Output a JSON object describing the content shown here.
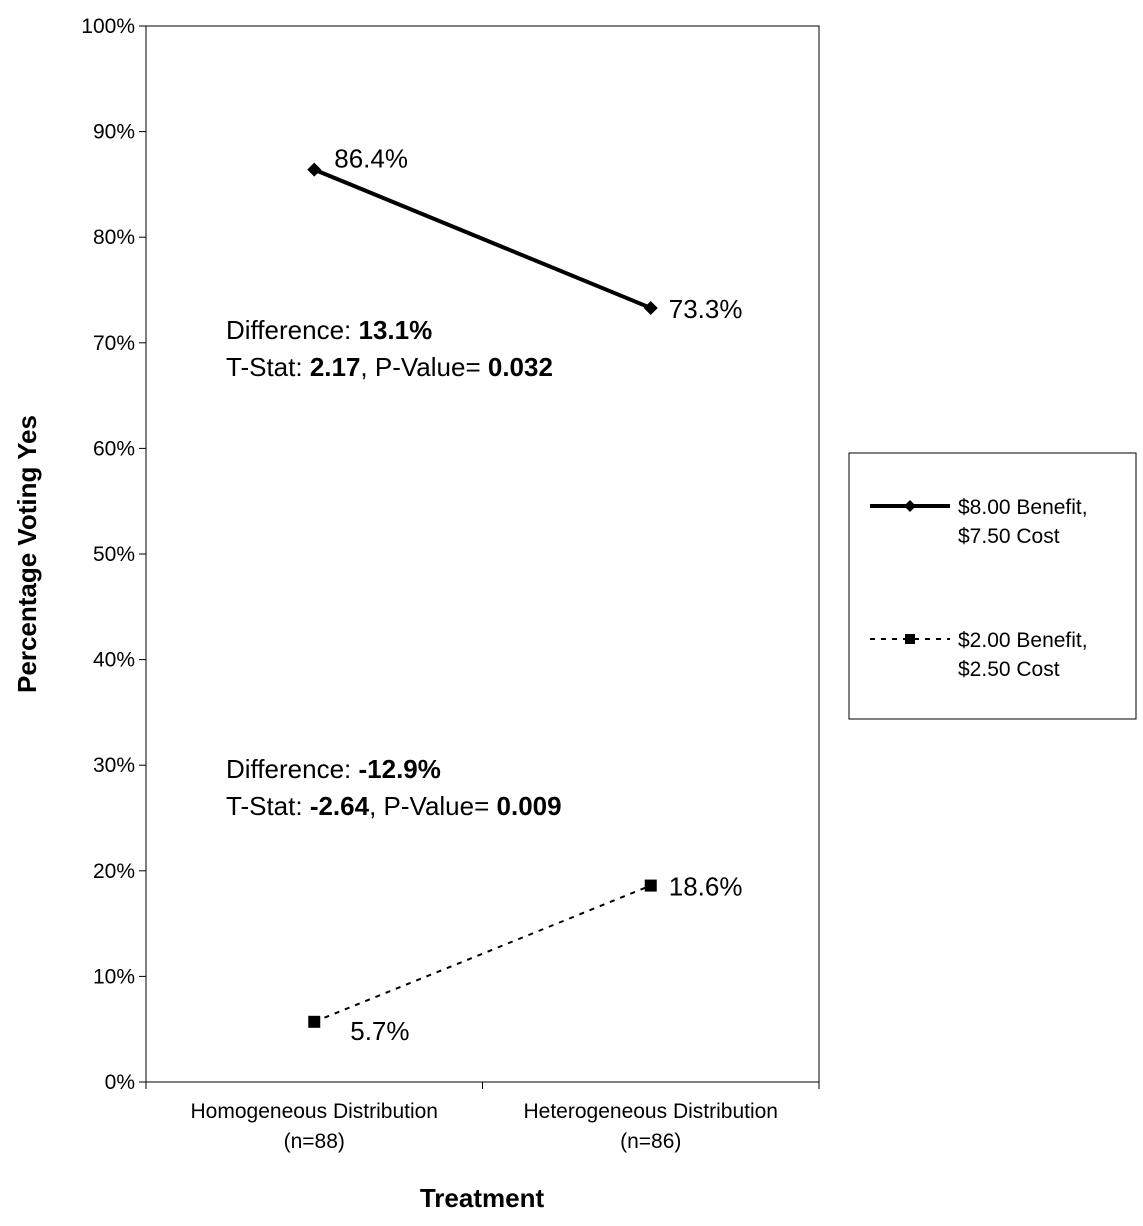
{
  "chart_data": {
    "type": "line",
    "title": "",
    "xlabel": "Treatment",
    "ylabel": "Percentage Voting Yes",
    "ylim": [
      0,
      100
    ],
    "y_ticks": [
      "0%",
      "10%",
      "20%",
      "30%",
      "40%",
      "50%",
      "60%",
      "70%",
      "80%",
      "90%",
      "100%"
    ],
    "categories": [
      [
        "Homogeneous Distribution",
        "(n=88)"
      ],
      [
        "Heterogeneous Distribution",
        "(n=86)"
      ]
    ],
    "series": [
      {
        "name_lines": [
          "$8.00 Benefit,",
          "$7.50 Cost"
        ],
        "values": [
          86.4,
          73.3
        ],
        "data_labels": [
          "86.4%",
          "73.3%"
        ],
        "line_style": "solid",
        "marker": "diamond",
        "color": "#000000"
      },
      {
        "name_lines": [
          "$2.00 Benefit,",
          "$2.50 Cost"
        ],
        "values": [
          5.7,
          18.6
        ],
        "data_labels": [
          "5.7%",
          "18.6%"
        ],
        "line_style": "dotted",
        "marker": "square",
        "color": "#000000"
      }
    ],
    "annotations": [
      {
        "line1": [
          "Difference: ",
          "13.1%"
        ],
        "line2": [
          "T-Stat: ",
          "2.17",
          ", P-Value= ",
          "0.032"
        ]
      },
      {
        "line1": [
          "Difference: ",
          "-12.9%"
        ],
        "line2": [
          "T-Stat: ",
          "-2.64",
          ", P-Value= ",
          "0.009"
        ]
      }
    ],
    "grid": false,
    "legend_position": "right"
  }
}
